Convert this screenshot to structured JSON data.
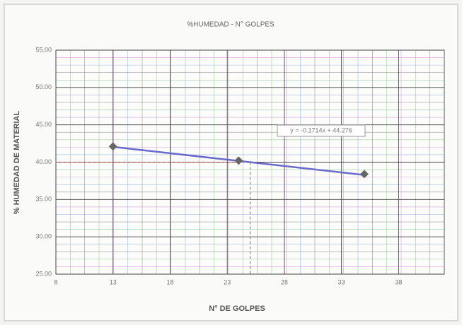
{
  "chart_data": {
    "type": "scatter",
    "title": "%HUMEDAD - N° GOLPES",
    "x_label": "N° DE GOLPES",
    "y_label": "% HUMEDAD DE MATERIAL",
    "x": [
      13,
      24,
      35
    ],
    "values": [
      42.1,
      40.2,
      38.4
    ],
    "color": "#666666",
    "trendline": {
      "slope": -0.1714,
      "intercept": 44.276,
      "label": "y = -0.1714x + 44.276",
      "color": "#6a6acd"
    },
    "reference": {
      "x": 25,
      "y": 40,
      "color": "#e04040"
    },
    "xlim": [
      8,
      42
    ],
    "ylim": [
      25,
      55
    ],
    "xticks": [
      8,
      13,
      18,
      23,
      28,
      33,
      38
    ],
    "yticks": [
      {
        "value": 25,
        "label": "25.00"
      },
      {
        "value": 30,
        "label": "30.00"
      },
      {
        "value": 35,
        "label": "35.00"
      },
      {
        "value": 40,
        "label": "40.00"
      },
      {
        "value": 45,
        "label": "45.00"
      },
      {
        "value": 50,
        "label": "50.00"
      },
      {
        "value": 55,
        "label": "55.00"
      }
    ],
    "grid": true
  }
}
